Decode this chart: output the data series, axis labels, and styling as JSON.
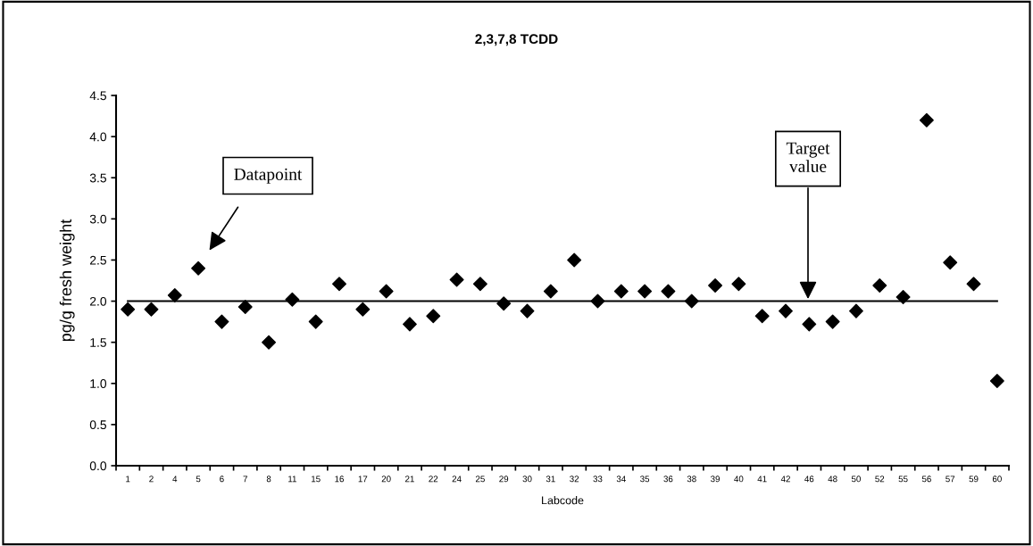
{
  "chart_data": {
    "type": "scatter",
    "title": "2,3,7,8 TCDD",
    "xlabel": "Labcode",
    "ylabel": "pg/g fresh weight",
    "categories": [
      "1",
      "2",
      "4",
      "5",
      "6",
      "7",
      "8",
      "11",
      "15",
      "16",
      "17",
      "20",
      "21",
      "22",
      "24",
      "25",
      "29",
      "30",
      "31",
      "32",
      "33",
      "34",
      "35",
      "36",
      "38",
      "39",
      "40",
      "41",
      "42",
      "46",
      "48",
      "50",
      "52",
      "55",
      "56",
      "57",
      "59",
      "60"
    ],
    "series": [
      {
        "color": "#000000",
        "values": [
          1.9,
          1.9,
          2.07,
          2.4,
          1.75,
          1.93,
          1.5,
          2.02,
          1.75,
          2.21,
          1.9,
          2.12,
          1.72,
          1.82,
          2.26,
          2.21,
          1.97,
          1.88,
          2.12,
          2.5,
          2.0,
          2.12,
          2.12,
          2.12,
          2.0,
          2.19,
          2.21,
          1.82,
          1.88,
          1.72,
          1.75,
          1.88,
          2.19,
          2.05,
          4.2,
          2.47,
          2.21,
          1.03
        ]
      }
    ],
    "marker": "diamond",
    "ylim": [
      0,
      4.5
    ],
    "yticks": [
      {
        "value": 0,
        "label": "0.0"
      },
      {
        "value": 0.5,
        "label": "0.5"
      },
      {
        "value": 1,
        "label": "1.0"
      },
      {
        "value": 1.5,
        "label": "1.5"
      },
      {
        "value": 2,
        "label": "2.0"
      },
      {
        "value": 2.5,
        "label": "2.5"
      },
      {
        "value": 3,
        "label": "3.0"
      },
      {
        "value": 3.5,
        "label": "3.5"
      },
      {
        "value": 4,
        "label": "4.0"
      },
      {
        "value": 4.5,
        "label": "4.5"
      }
    ],
    "ref_lines": [
      {
        "axis": "y",
        "value": 2.0,
        "color": "#000000",
        "line_style": "solid"
      }
    ],
    "annotations": [
      "Datapoint",
      "Target\nvalue"
    ],
    "grid": false,
    "legend": false
  }
}
